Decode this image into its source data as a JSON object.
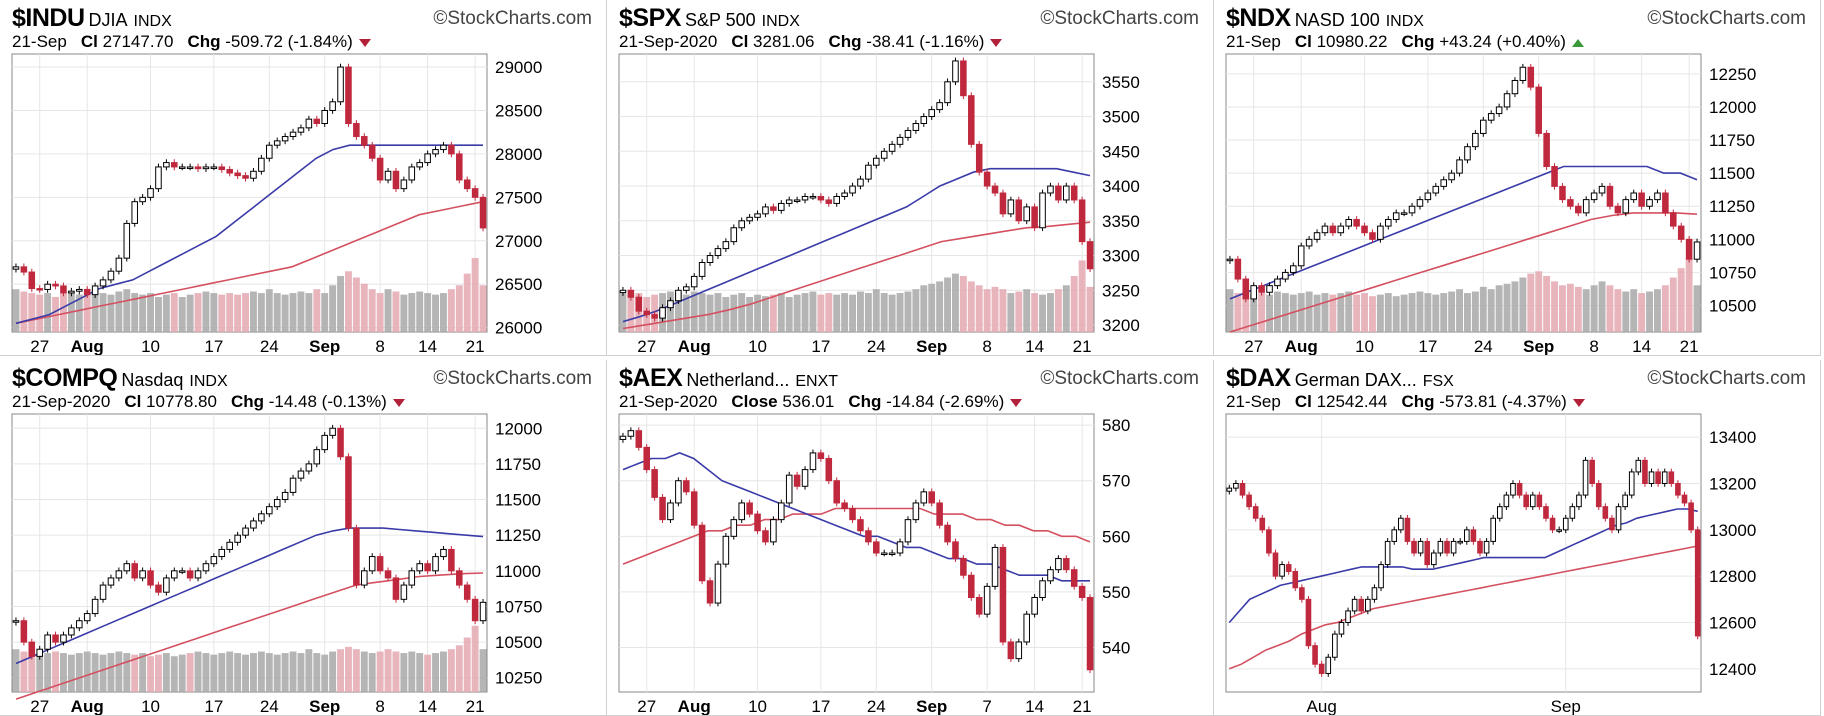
{
  "source": "©StockCharts.com",
  "charts": [
    {
      "symbol": "$INDU",
      "name": "DJIA",
      "exchange": "INDX",
      "date": "21-Sep",
      "close_label": "Cl",
      "close": "27147.70",
      "chg_label": "Chg",
      "chg": "-509.72 (-1.84%)",
      "direction": "down"
    },
    {
      "symbol": "$SPX",
      "name": "S&P 500",
      "exchange": "INDX",
      "date": "21-Sep-2020",
      "close_label": "Cl",
      "close": "3281.06",
      "chg_label": "Chg",
      "chg": "-38.41 (-1.16%)",
      "direction": "down"
    },
    {
      "symbol": "$NDX",
      "name": "NASD 100",
      "exchange": "INDX",
      "date": "21-Sep",
      "close_label": "Cl",
      "close": "10980.22",
      "chg_label": "Chg",
      "chg": "+43.24 (+0.40%)",
      "direction": "up"
    },
    {
      "symbol": "$COMPQ",
      "name": "Nasdaq",
      "exchange": "INDX",
      "date": "21-Sep-2020",
      "close_label": "Cl",
      "close": "10778.80",
      "chg_label": "Chg",
      "chg": "-14.48 (-0.13%)",
      "direction": "down"
    },
    {
      "symbol": "$AEX",
      "name": "Netherland...",
      "exchange": "ENXT",
      "date": "21-Sep-2020",
      "close_label": "Close",
      "close": "536.01",
      "chg_label": "Chg",
      "chg": "-14.84 (-2.69%)",
      "direction": "down"
    },
    {
      "symbol": "$DAX",
      "name": "German DAX...",
      "exchange": "FSX",
      "date": "21-Sep",
      "close_label": "Cl",
      "close": "12542.44",
      "chg_label": "Chg",
      "chg": "-573.81 (-4.37%)",
      "direction": "down"
    }
  ],
  "chart_data": [
    {
      "type": "candlestick",
      "symbol": "$INDU",
      "x_ticks": [
        "27",
        "Aug",
        "10",
        "17",
        "24",
        "Sep",
        "8",
        "14",
        "21"
      ],
      "x_tick_pos": [
        3,
        9,
        17,
        25,
        32,
        39,
        46,
        52,
        58
      ],
      "bold_ticks": [
        "Aug",
        "Sep"
      ],
      "y_ticks": [
        "29000",
        "28500",
        "28000",
        "27500",
        "27000",
        "26500",
        "26000"
      ],
      "ylim": [
        25950,
        29150
      ],
      "n": 60,
      "closes": [
        26700,
        26640,
        26450,
        26440,
        26500,
        26480,
        26400,
        26420,
        26440,
        26380,
        26480,
        26550,
        26650,
        26800,
        27200,
        27450,
        27500,
        27600,
        27850,
        27900,
        27850,
        27850,
        27850,
        27830,
        27850,
        27850,
        27820,
        27780,
        27750,
        27720,
        27800,
        27950,
        28100,
        28150,
        28200,
        28250,
        28300,
        28400,
        28350,
        28500,
        28600,
        29000,
        28350,
        28200,
        28100,
        27950,
        27700,
        27800,
        27600,
        27700,
        27850,
        27900,
        28000,
        28050,
        28100,
        28000,
        27700,
        27600,
        27500,
        27148
      ],
      "ma_blue": [
        26050,
        26100,
        26150,
        26250,
        26350,
        26450,
        26500,
        26550,
        26650,
        26750,
        26850,
        26950,
        27050,
        27200,
        27350,
        27500,
        27650,
        27800,
        27950,
        28050,
        28100,
        28100,
        28100,
        28100,
        28100,
        28100,
        28100,
        28100,
        28100
      ],
      "ma_red": [
        26050,
        26100,
        26150,
        26200,
        26250,
        26300,
        26350,
        26400,
        26450,
        26500,
        26550,
        26600,
        26650,
        26700,
        26800,
        26900,
        27000,
        27100,
        27200,
        27300,
        27350,
        27400,
        27450
      ],
      "volume": [
        0.55,
        0.52,
        0.5,
        0.48,
        0.5,
        0.45,
        0.5,
        0.52,
        0.48,
        0.5,
        0.55,
        0.5,
        0.48,
        0.52,
        0.55,
        0.5,
        0.48,
        0.5,
        0.45,
        0.48,
        0.5,
        0.45,
        0.48,
        0.5,
        0.52,
        0.5,
        0.48,
        0.5,
        0.48,
        0.5,
        0.52,
        0.5,
        0.55,
        0.5,
        0.48,
        0.5,
        0.52,
        0.5,
        0.55,
        0.5,
        0.6,
        0.72,
        0.78,
        0.7,
        0.62,
        0.55,
        0.5,
        0.55,
        0.52,
        0.48,
        0.5,
        0.52,
        0.5,
        0.48,
        0.5,
        0.55,
        0.6,
        0.75,
        0.95,
        0.6
      ]
    },
    {
      "type": "candlestick",
      "symbol": "$SPX",
      "x_ticks": [
        "27",
        "Aug",
        "10",
        "17",
        "24",
        "Sep",
        "8",
        "14",
        "21"
      ],
      "x_tick_pos": [
        3,
        9,
        17,
        25,
        32,
        39,
        46,
        52,
        58
      ],
      "bold_ticks": [
        "Aug",
        "Sep"
      ],
      "y_ticks": [
        "3550",
        "3500",
        "3450",
        "3400",
        "3350",
        "3300",
        "3250",
        "3200"
      ],
      "ylim": [
        3190,
        3590
      ],
      "n": 60,
      "closes": [
        3250,
        3240,
        3220,
        3215,
        3210,
        3225,
        3235,
        3250,
        3255,
        3270,
        3290,
        3300,
        3310,
        3320,
        3340,
        3350,
        3355,
        3360,
        3370,
        3365,
        3375,
        3380,
        3380,
        3385,
        3385,
        3380,
        3375,
        3385,
        3390,
        3400,
        3410,
        3430,
        3440,
        3450,
        3460,
        3470,
        3480,
        3490,
        3500,
        3510,
        3520,
        3550,
        3580,
        3530,
        3460,
        3420,
        3400,
        3390,
        3360,
        3380,
        3350,
        3370,
        3340,
        3390,
        3400,
        3380,
        3400,
        3380,
        3320,
        3281
      ],
      "ma_blue": [
        3205,
        3212,
        3220,
        3230,
        3240,
        3250,
        3260,
        3270,
        3280,
        3290,
        3300,
        3310,
        3320,
        3330,
        3340,
        3350,
        3360,
        3370,
        3385,
        3400,
        3410,
        3420,
        3425,
        3425,
        3425,
        3425,
        3425,
        3420,
        3415
      ],
      "ma_red": [
        3195,
        3200,
        3205,
        3210,
        3215,
        3222,
        3230,
        3240,
        3250,
        3260,
        3270,
        3280,
        3290,
        3300,
        3310,
        3320,
        3325,
        3330,
        3335,
        3340,
        3342,
        3345,
        3348
      ],
      "volume": [
        0.5,
        0.48,
        0.5,
        0.45,
        0.48,
        0.5,
        0.52,
        0.5,
        0.48,
        0.52,
        0.5,
        0.48,
        0.5,
        0.45,
        0.48,
        0.5,
        0.45,
        0.48,
        0.46,
        0.48,
        0.5,
        0.45,
        0.48,
        0.5,
        0.52,
        0.48,
        0.5,
        0.48,
        0.5,
        0.48,
        0.52,
        0.5,
        0.55,
        0.5,
        0.48,
        0.5,
        0.52,
        0.55,
        0.6,
        0.62,
        0.65,
        0.7,
        0.75,
        0.72,
        0.65,
        0.6,
        0.55,
        0.58,
        0.55,
        0.5,
        0.52,
        0.55,
        0.5,
        0.48,
        0.5,
        0.55,
        0.6,
        0.72,
        0.92,
        0.58
      ]
    },
    {
      "type": "candlestick",
      "symbol": "$NDX",
      "x_ticks": [
        "27",
        "Aug",
        "10",
        "17",
        "24",
        "Sep",
        "8",
        "14",
        "21"
      ],
      "x_tick_pos": [
        3,
        9,
        17,
        25,
        32,
        39,
        46,
        52,
        58
      ],
      "bold_ticks": [
        "Aug",
        "Sep"
      ],
      "y_ticks": [
        "12250",
        "12000",
        "11750",
        "11500",
        "11250",
        "11000",
        "10750",
        "10500"
      ],
      "ylim": [
        10300,
        12400
      ],
      "n": 60,
      "closes": [
        10850,
        10700,
        10550,
        10650,
        10600,
        10650,
        10700,
        10750,
        10800,
        10950,
        11000,
        11050,
        11100,
        11050,
        11100,
        11150,
        11100,
        11050,
        11000,
        11100,
        11150,
        11200,
        11200,
        11250,
        11300,
        11350,
        11400,
        11450,
        11500,
        11600,
        11700,
        11800,
        11900,
        11950,
        12000,
        12100,
        12200,
        12300,
        12150,
        11800,
        11550,
        11400,
        11300,
        11250,
        11200,
        11300,
        11350,
        11400,
        11250,
        11200,
        11300,
        11350,
        11250,
        11300,
        11350,
        11200,
        11100,
        11000,
        10850,
        10980
      ],
      "ma_blue": [
        10550,
        10600,
        10650,
        10700,
        10750,
        10800,
        10850,
        10900,
        10950,
        11000,
        11050,
        11100,
        11150,
        11200,
        11250,
        11300,
        11350,
        11400,
        11450,
        11500,
        11550,
        11550,
        11550,
        11550,
        11550,
        11550,
        11500,
        11500,
        11450
      ],
      "ma_red": [
        10300,
        10350,
        10400,
        10450,
        10500,
        10550,
        10600,
        10650,
        10700,
        10750,
        10800,
        10850,
        10900,
        10950,
        11000,
        11050,
        11100,
        11150,
        11180,
        11200,
        11200,
        11200,
        11190
      ],
      "volume": [
        0.55,
        0.5,
        0.52,
        0.48,
        0.5,
        0.48,
        0.52,
        0.5,
        0.48,
        0.5,
        0.52,
        0.48,
        0.5,
        0.48,
        0.5,
        0.52,
        0.48,
        0.5,
        0.46,
        0.48,
        0.5,
        0.46,
        0.48,
        0.5,
        0.52,
        0.5,
        0.48,
        0.5,
        0.52,
        0.55,
        0.5,
        0.52,
        0.58,
        0.55,
        0.6,
        0.62,
        0.65,
        0.7,
        0.75,
        0.78,
        0.72,
        0.65,
        0.6,
        0.62,
        0.58,
        0.55,
        0.6,
        0.65,
        0.6,
        0.55,
        0.52,
        0.55,
        0.5,
        0.52,
        0.55,
        0.6,
        0.7,
        0.82,
        0.95,
        0.6
      ]
    },
    {
      "type": "candlestick",
      "symbol": "$COMPQ",
      "x_ticks": [
        "27",
        "Aug",
        "10",
        "17",
        "24",
        "Sep",
        "8",
        "14",
        "21"
      ],
      "x_tick_pos": [
        3,
        9,
        17,
        25,
        32,
        39,
        46,
        52,
        58
      ],
      "bold_ticks": [
        "Aug",
        "Sep"
      ],
      "y_ticks": [
        "12000",
        "11750",
        "11500",
        "11250",
        "11000",
        "10750",
        "10500",
        "10250"
      ],
      "ylim": [
        10150,
        12100
      ],
      "n": 60,
      "closes": [
        10650,
        10500,
        10400,
        10450,
        10550,
        10500,
        10550,
        10600,
        10650,
        10700,
        10800,
        10900,
        10950,
        11000,
        11050,
        10950,
        11000,
        10900,
        10850,
        10950,
        11000,
        11000,
        10950,
        11000,
        11050,
        11100,
        11150,
        11200,
        11250,
        11300,
        11350,
        11400,
        11450,
        11500,
        11550,
        11650,
        11700,
        11750,
        11850,
        11950,
        12000,
        11800,
        11300,
        10900,
        11000,
        11100,
        11000,
        10950,
        10800,
        10900,
        11000,
        11050,
        11000,
        11100,
        11150,
        11000,
        10900,
        10800,
        10650,
        10779
      ],
      "ma_blue": [
        10350,
        10400,
        10450,
        10500,
        10550,
        10600,
        10650,
        10700,
        10750,
        10800,
        10850,
        10900,
        10950,
        11000,
        11050,
        11100,
        11150,
        11200,
        11250,
        11280,
        11300,
        11300,
        11300,
        11290,
        11280,
        11270,
        11260,
        11250,
        11240
      ],
      "ma_red": [
        10100,
        10150,
        10200,
        10250,
        10300,
        10350,
        10400,
        10450,
        10500,
        10550,
        10600,
        10650,
        10700,
        10750,
        10800,
        10850,
        10900,
        10920,
        10940,
        10960,
        10970,
        10980,
        10985
      ],
      "volume": [
        0.55,
        0.52,
        0.5,
        0.48,
        0.5,
        0.52,
        0.5,
        0.48,
        0.5,
        0.52,
        0.5,
        0.48,
        0.5,
        0.52,
        0.5,
        0.48,
        0.5,
        0.46,
        0.48,
        0.5,
        0.46,
        0.48,
        0.5,
        0.52,
        0.5,
        0.48,
        0.5,
        0.52,
        0.5,
        0.48,
        0.5,
        0.52,
        0.5,
        0.48,
        0.5,
        0.52,
        0.5,
        0.55,
        0.5,
        0.48,
        0.52,
        0.55,
        0.58,
        0.55,
        0.52,
        0.5,
        0.52,
        0.55,
        0.52,
        0.5,
        0.52,
        0.5,
        0.48,
        0.5,
        0.52,
        0.55,
        0.6,
        0.7,
        0.85,
        0.55
      ]
    },
    {
      "type": "candlestick",
      "symbol": "$AEX",
      "x_ticks": [
        "27",
        "Aug",
        "10",
        "17",
        "24",
        "Sep",
        "7",
        "14",
        "21"
      ],
      "x_tick_pos": [
        3,
        9,
        17,
        25,
        32,
        39,
        46,
        52,
        58
      ],
      "bold_ticks": [
        "Aug",
        "Sep"
      ],
      "y_ticks": [
        "580",
        "570",
        "560",
        "550",
        "540"
      ],
      "ylim": [
        532,
        582
      ],
      "n": 60,
      "closes": [
        578,
        579,
        576,
        572,
        567,
        563,
        566,
        570,
        568,
        562,
        552,
        548,
        555,
        560,
        563,
        566,
        564,
        561,
        559,
        563,
        566,
        571,
        569,
        572,
        575,
        574,
        570,
        566,
        565,
        563,
        561,
        559,
        557,
        557,
        557,
        559,
        563,
        566,
        568,
        566,
        562,
        559,
        556,
        553,
        549,
        546,
        551,
        558,
        541,
        538,
        541,
        546,
        549,
        552,
        554,
        556,
        554,
        551,
        549,
        536
      ],
      "ma_blue": [
        572,
        573,
        574,
        574,
        575,
        574,
        572,
        570,
        569,
        568,
        567,
        566,
        565,
        564,
        563,
        562,
        561,
        560,
        560,
        559,
        558,
        558,
        557,
        556,
        556,
        555,
        555,
        554,
        553,
        553,
        553,
        552,
        552,
        552
      ],
      "ma_red": [
        555,
        556,
        557,
        558,
        559,
        560,
        561,
        561,
        562,
        562,
        563,
        563,
        564,
        564,
        564,
        565,
        565,
        565,
        565,
        565,
        565,
        565,
        564,
        564,
        564,
        563,
        563,
        562,
        562,
        561,
        561,
        560,
        560,
        559
      ],
      "volume": []
    },
    {
      "type": "candlestick",
      "symbol": "$DAX",
      "x_ticks": [
        "Aug",
        "Sep"
      ],
      "x_tick_pos": [
        14,
        51
      ],
      "bold_ticks": [],
      "y_ticks": [
        "13400",
        "13200",
        "13000",
        "12800",
        "12600",
        "12400"
      ],
      "ylim": [
        12300,
        13500
      ],
      "n": 72,
      "closes": [
        13180,
        13200,
        13150,
        13100,
        13050,
        13000,
        12900,
        12800,
        12850,
        12820,
        12750,
        12700,
        12500,
        12420,
        12380,
        12450,
        12550,
        12600,
        12650,
        12700,
        12650,
        12700,
        12750,
        12850,
        12950,
        13000,
        13050,
        12950,
        12900,
        12950,
        12850,
        12900,
        12950,
        12900,
        12950,
        12950,
        13000,
        12950,
        12900,
        12950,
        13050,
        13100,
        13150,
        13200,
        13150,
        13100,
        13150,
        13100,
        13050,
        13000,
        13000,
        13050,
        13100,
        13150,
        13300,
        13200,
        13100,
        13050,
        13000,
        13100,
        13150,
        13250,
        13300,
        13200,
        13250,
        13200,
        13250,
        13200,
        13150,
        13116,
        13000,
        12542
      ],
      "ma_blue": [
        12600,
        12650,
        12700,
        12720,
        12740,
        12760,
        12770,
        12780,
        12790,
        12800,
        12810,
        12820,
        12830,
        12840,
        12840,
        12840,
        12840,
        12840,
        12830,
        12830,
        12830,
        12840,
        12850,
        12860,
        12870,
        12880,
        12880,
        12880,
        12880,
        12880,
        12880,
        12880,
        12900,
        12920,
        12940,
        12960,
        12980,
        13000,
        13020,
        13030,
        13050,
        13060,
        13070,
        13080,
        13090,
        13090,
        13080
      ],
      "ma_red": [
        12400,
        12420,
        12450,
        12480,
        12500,
        12520,
        12550,
        12570,
        12590,
        12600,
        12620,
        12640,
        12660,
        12670,
        12680,
        12690,
        12700,
        12710,
        12720,
        12730,
        12740,
        12750,
        12760,
        12770,
        12780,
        12790,
        12800,
        12810,
        12820,
        12830,
        12840,
        12850,
        12860,
        12870,
        12880,
        12890,
        12900,
        12910,
        12920,
        12930
      ],
      "volume": []
    }
  ]
}
